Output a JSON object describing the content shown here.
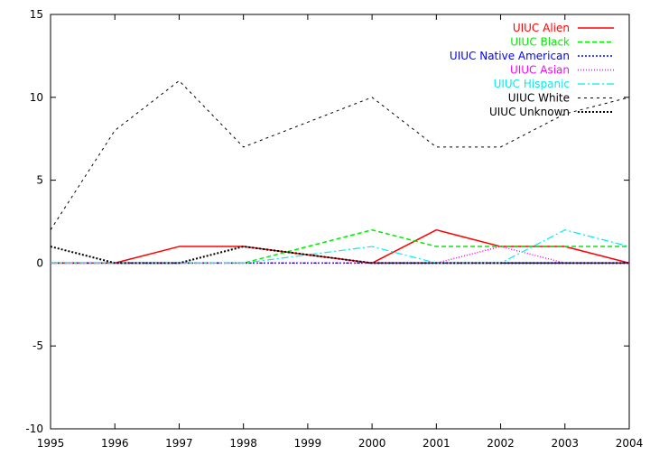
{
  "chart_data": {
    "type": "line",
    "title": "",
    "xlabel": "",
    "ylabel": "",
    "xlim": [
      1995,
      2004
    ],
    "ylim": [
      -10,
      15
    ],
    "grid": false,
    "legend_position": "top-right",
    "x": [
      1995,
      1996,
      1997,
      1998,
      1999,
      2000,
      2001,
      2002,
      2003,
      2004
    ],
    "x_ticks": [
      "1995",
      "1996",
      "1997",
      "1998",
      "1999",
      "2000",
      "2001",
      "2002",
      "2003",
      "2004"
    ],
    "y_ticks": [
      "-10",
      "-5",
      "0",
      "5",
      "10",
      "15"
    ],
    "series": [
      {
        "name": "UIUC Alien",
        "color": "#ff0000",
        "dash": "solid",
        "values": [
          0,
          0,
          1,
          1,
          0.5,
          0,
          2,
          1,
          1,
          0
        ]
      },
      {
        "name": "UIUC Black",
        "color": "#00ee00",
        "dash": "dashed",
        "values": [
          0,
          0,
          0,
          0,
          1,
          2,
          1,
          1,
          1,
          1
        ]
      },
      {
        "name": "UIUC Native American",
        "color": "#0000ff",
        "dash": "dotted",
        "values": [
          0,
          0,
          0,
          0,
          0,
          0,
          0,
          0,
          0,
          0
        ]
      },
      {
        "name": "UIUC Asian",
        "color": "#ff00ff",
        "dash": "dotted-fine",
        "values": [
          0,
          0,
          0,
          0,
          0,
          0,
          0,
          1,
          0,
          0
        ]
      },
      {
        "name": "UIUC Hispanic",
        "color": "#00eeee",
        "dash": "dash-dot",
        "values": [
          0,
          0,
          0,
          0,
          0.5,
          1,
          0,
          0,
          2,
          1
        ]
      },
      {
        "name": "UIUC White",
        "color": "#000000",
        "dash": "short-dash",
        "values": [
          2,
          8,
          11,
          7,
          8.5,
          10,
          7,
          7,
          9,
          10
        ]
      },
      {
        "name": "UIUC Unknown",
        "color": "#000000",
        "dash": "dotted-bold",
        "values": [
          1,
          0,
          0,
          1,
          0.5,
          0,
          0,
          0,
          0,
          0
        ]
      }
    ]
  }
}
